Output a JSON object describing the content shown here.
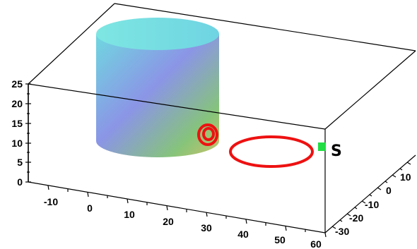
{
  "chart_data": {
    "type": "3d-scatter",
    "title": "",
    "xlabel": "",
    "ylabel": "",
    "zlabel": "",
    "grid": false,
    "x_ticks": [
      "-10",
      "0",
      "10",
      "20",
      "30",
      "40",
      "50",
      "60"
    ],
    "y_ticks": [
      "-30",
      "-20",
      "-10",
      "0",
      "10"
    ],
    "z_ticks": [
      "0",
      "5",
      "10",
      "15",
      "20",
      "25"
    ],
    "xlim": [
      -15,
      60
    ],
    "ylim": [
      -35,
      15
    ],
    "zlim": [
      0,
      25
    ],
    "objects": [
      {
        "kind": "cylinder",
        "center": [
          10,
          10
        ],
        "radius": 15,
        "z_range": [
          0,
          25
        ]
      },
      {
        "kind": "ring",
        "center": [
          35,
          -10
        ],
        "radius": 12,
        "z": 0,
        "color": "#ee1111"
      },
      {
        "kind": "helix-spot",
        "center": [
          24,
          -13
        ],
        "z": 10,
        "color": "#ee1111"
      },
      {
        "kind": "point",
        "label": "S",
        "position": [
          59,
          -5
        ],
        "z": 10,
        "color": "#22dd44"
      }
    ]
  }
}
